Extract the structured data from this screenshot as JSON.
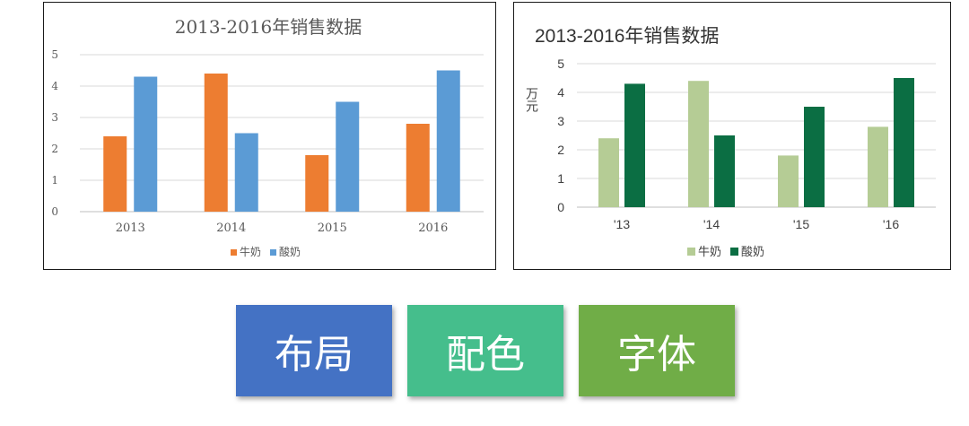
{
  "chart_data": [
    {
      "type": "bar",
      "title": "2013-2016年销售数据",
      "categories": [
        "2013",
        "2014",
        "2015",
        "2016"
      ],
      "series": [
        {
          "name": "牛奶",
          "values": [
            2.4,
            4.4,
            1.8,
            2.8
          ],
          "color": "#ED7D31"
        },
        {
          "name": "酸奶",
          "values": [
            4.3,
            2.5,
            3.5,
            4.5
          ],
          "color": "#5B9BD5"
        }
      ],
      "ylim": [
        0,
        5
      ],
      "yticks": [
        "0",
        "1",
        "2",
        "3",
        "4",
        "5"
      ],
      "ylabel": "",
      "xlabel": "",
      "grid": true,
      "legend": "bottom"
    },
    {
      "type": "bar",
      "title": "2013-2016年销售数据",
      "categories": [
        "'13",
        "'14",
        "'15",
        "'16"
      ],
      "series": [
        {
          "name": "牛奶",
          "values": [
            2.4,
            4.4,
            1.8,
            2.8
          ],
          "color": "#B5CC95"
        },
        {
          "name": "酸奶",
          "values": [
            4.3,
            2.5,
            3.5,
            4.5
          ],
          "color": "#0B6E43"
        }
      ],
      "ylim": [
        0,
        5
      ],
      "yticks": [
        "0",
        "1",
        "2",
        "3",
        "4",
        "5"
      ],
      "ylabel": "万元",
      "xlabel": "",
      "grid": true,
      "legend": "bottom"
    }
  ],
  "buttons": [
    {
      "label": "布局",
      "color": "#4472C4"
    },
    {
      "label": "配色",
      "color": "#45BE8C"
    },
    {
      "label": "字体",
      "color": "#70AD47"
    }
  ]
}
